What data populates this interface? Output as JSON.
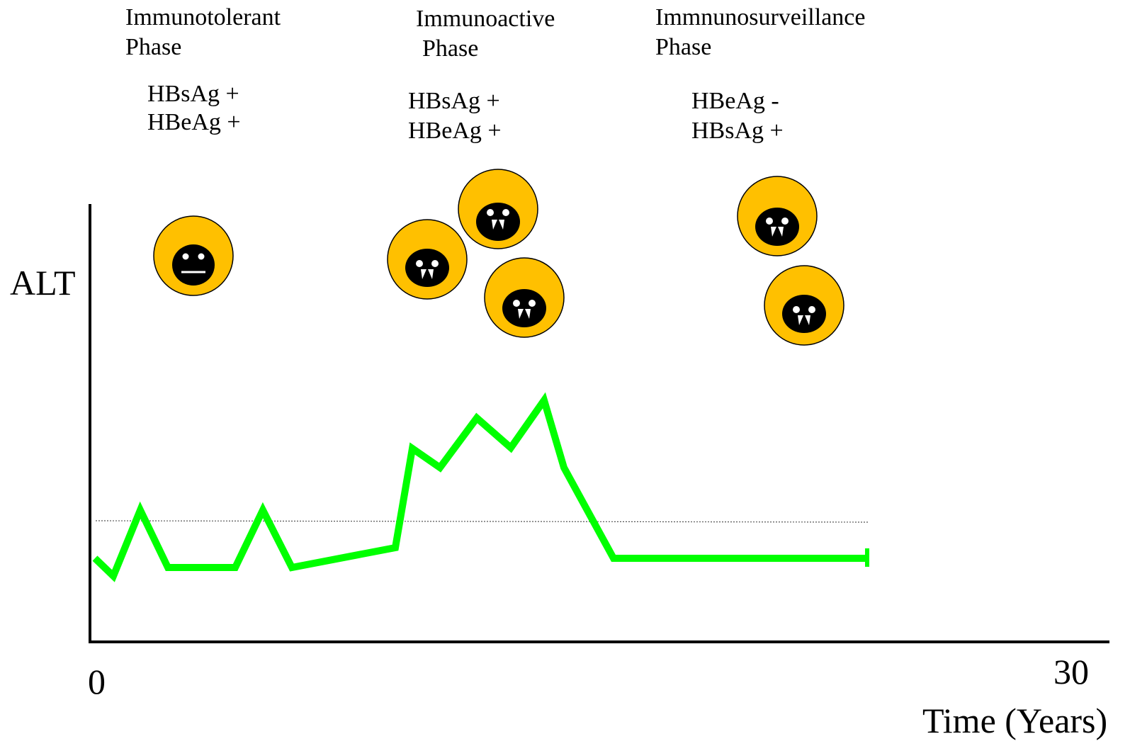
{
  "phases": [
    {
      "title_line1": "Immunotolerant",
      "title_line2": "Phase",
      "marker_line1": "HBsAg +",
      "marker_line2": "HBeAg +",
      "cell_count": 1,
      "cell_expression": "neutral"
    },
    {
      "title_line1": "Immunoactive",
      "title_line2": "Phase",
      "marker_line1": "HBsAg +",
      "marker_line2": "HBeAg +",
      "cell_count": 3,
      "cell_expression": "fangs"
    },
    {
      "title_line1": "Immnunosurveillance",
      "title_line2": "Phase",
      "marker_line1": "HBeAg -",
      "marker_line2": "HBsAg +",
      "cell_count": 2,
      "cell_expression": "fangs"
    }
  ],
  "axis": {
    "y_label": "ALT",
    "x_label": "Time (Years)",
    "x_start": "0",
    "x_end": "30"
  },
  "colors": {
    "alt_line": "#00ff00",
    "cell_body": "#ffc000",
    "cell_nucleus": "#000000",
    "threshold": "#555555"
  }
}
